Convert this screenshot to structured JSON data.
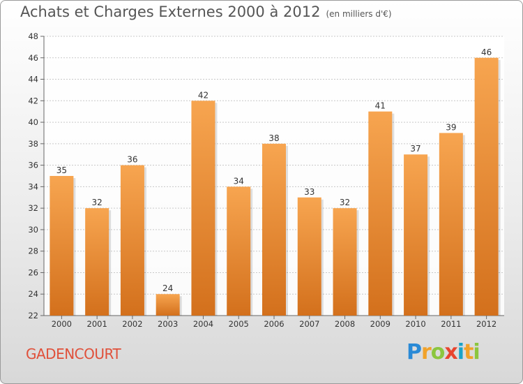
{
  "chart_data": {
    "type": "bar",
    "title": "Achats et Charges Externes 2000 à 2012",
    "subtitle": "(en milliers d'€)",
    "categories": [
      "2000",
      "2001",
      "2002",
      "2003",
      "2004",
      "2005",
      "2006",
      "2007",
      "2008",
      "2009",
      "2010",
      "2011",
      "2012"
    ],
    "values": [
      35,
      32,
      36,
      24,
      42,
      34,
      38,
      33,
      32,
      41,
      37,
      39,
      46
    ],
    "ylim": [
      22,
      48
    ],
    "yticks": [
      22,
      24,
      26,
      28,
      30,
      32,
      34,
      36,
      38,
      40,
      42,
      44,
      46,
      48
    ],
    "grid": true,
    "bar_color_top": "#f7a550",
    "bar_color_bottom": "#d3701c"
  },
  "footer": {
    "commune": "GADENCOURT",
    "logo": "Proxiti"
  }
}
